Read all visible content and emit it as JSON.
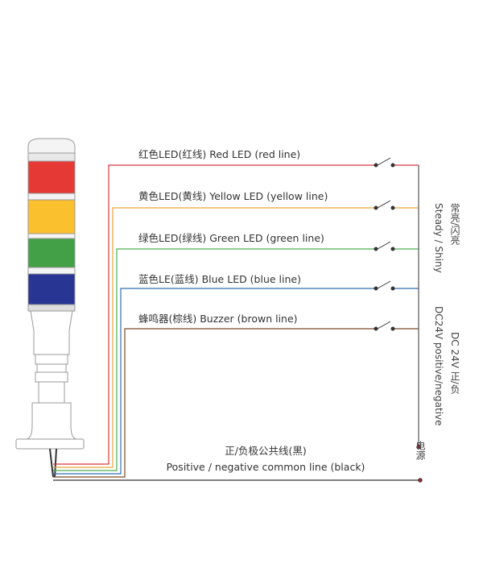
{
  "wires": [
    {
      "label": "红色LED(红线) Red LED (red line)"
    },
    {
      "label": "黄色LED(黄线) Yellow LED (yellow line)"
    },
    {
      "label": "绿色LED(绿线) Green LED (green line)"
    },
    {
      "label": "蓝色LE(蓝线) Blue LED (blue line)"
    },
    {
      "label": "蜂鸣器(棕线) Buzzer (brown line)"
    }
  ],
  "mode": {
    "zh": "常亮/闪亮",
    "en": "Steady / Shiny"
  },
  "supply": {
    "zh": "DC 24V 正/负",
    "en": "DC24V positive/negative"
  },
  "power": "电源",
  "common_line": {
    "zh": "正/负极公共线(黑)",
    "en": "Positive / negative common line (black)"
  }
}
